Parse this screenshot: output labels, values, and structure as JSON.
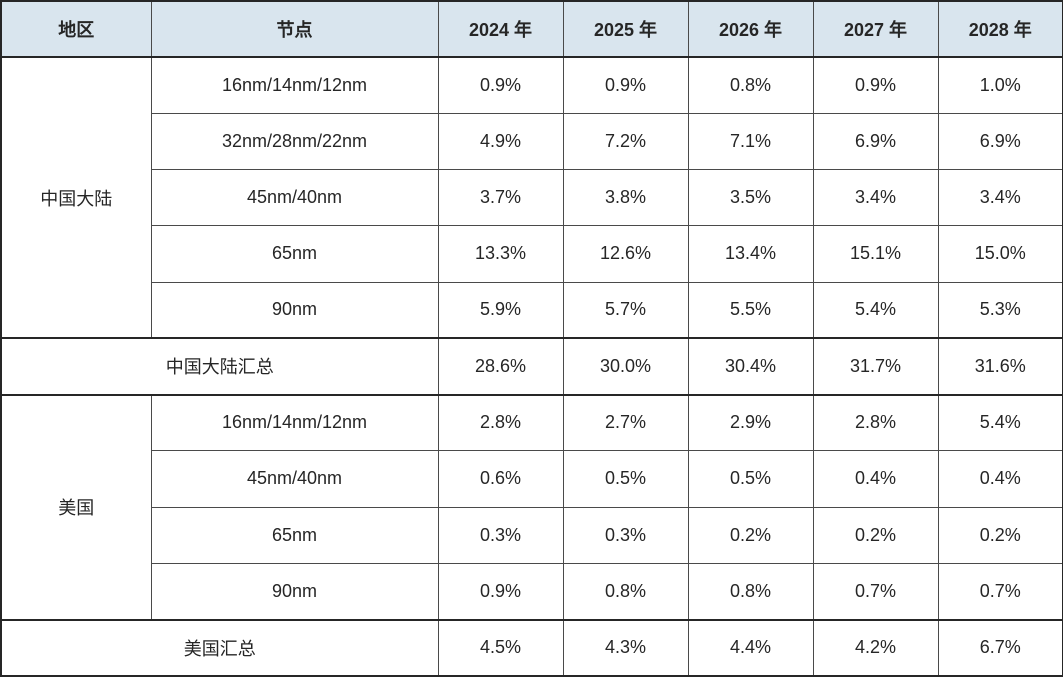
{
  "table": {
    "headers": {
      "region": "地区",
      "node": "节点",
      "years": [
        "2024 年",
        "2025 年",
        "2026 年",
        "2027 年",
        "2028 年"
      ]
    },
    "sections": [
      {
        "region": "中国大陆",
        "rows": [
          {
            "node": "16nm/14nm/12nm",
            "values": [
              "0.9%",
              "0.9%",
              "0.8%",
              "0.9%",
              "1.0%"
            ]
          },
          {
            "node": "32nm/28nm/22nm",
            "values": [
              "4.9%",
              "7.2%",
              "7.1%",
              "6.9%",
              "6.9%"
            ]
          },
          {
            "node": "45nm/40nm",
            "values": [
              "3.7%",
              "3.8%",
              "3.5%",
              "3.4%",
              "3.4%"
            ]
          },
          {
            "node": "65nm",
            "values": [
              "13.3%",
              "12.6%",
              "13.4%",
              "15.1%",
              "15.0%"
            ]
          },
          {
            "node": "90nm",
            "values": [
              "5.9%",
              "5.7%",
              "5.5%",
              "5.4%",
              "5.3%"
            ]
          }
        ],
        "summary": {
          "label": "中国大陆汇总",
          "values": [
            "28.6%",
            "30.0%",
            "30.4%",
            "31.7%",
            "31.6%"
          ]
        }
      },
      {
        "region": "美国",
        "rows": [
          {
            "node": "16nm/14nm/12nm",
            "values": [
              "2.8%",
              "2.7%",
              "2.9%",
              "2.8%",
              "5.4%"
            ]
          },
          {
            "node": "45nm/40nm",
            "values": [
              "0.6%",
              "0.5%",
              "0.5%",
              "0.4%",
              "0.4%"
            ]
          },
          {
            "node": "65nm",
            "values": [
              "0.3%",
              "0.3%",
              "0.2%",
              "0.2%",
              "0.2%"
            ]
          },
          {
            "node": "90nm",
            "values": [
              "0.9%",
              "0.8%",
              "0.8%",
              "0.7%",
              "0.7%"
            ]
          }
        ],
        "summary": {
          "label": "美国汇总",
          "values": [
            "4.5%",
            "4.3%",
            "4.4%",
            "4.2%",
            "6.7%"
          ]
        }
      }
    ],
    "colors": {
      "header_bg": "#d9e5ee",
      "border_dark": "#262626",
      "border_light": "#4a4a4a",
      "text": "#262626"
    }
  },
  "chart_data": {
    "type": "table",
    "title": "",
    "columns": [
      "地区",
      "节点",
      "2024 年",
      "2025 年",
      "2026 年",
      "2027 年",
      "2028 年"
    ],
    "rows": [
      [
        "中国大陆",
        "16nm/14nm/12nm",
        "0.9%",
        "0.9%",
        "0.8%",
        "0.9%",
        "1.0%"
      ],
      [
        "中国大陆",
        "32nm/28nm/22nm",
        "4.9%",
        "7.2%",
        "7.1%",
        "6.9%",
        "6.9%"
      ],
      [
        "中国大陆",
        "45nm/40nm",
        "3.7%",
        "3.8%",
        "3.5%",
        "3.4%",
        "3.4%"
      ],
      [
        "中国大陆",
        "65nm",
        "13.3%",
        "12.6%",
        "13.4%",
        "15.1%",
        "15.0%"
      ],
      [
        "中国大陆",
        "90nm",
        "5.9%",
        "5.7%",
        "5.5%",
        "5.4%",
        "5.3%"
      ],
      [
        "中国大陆汇总",
        "",
        "28.6%",
        "30.0%",
        "30.4%",
        "31.7%",
        "31.6%"
      ],
      [
        "美国",
        "16nm/14nm/12nm",
        "2.8%",
        "2.7%",
        "2.9%",
        "2.8%",
        "5.4%"
      ],
      [
        "美国",
        "45nm/40nm",
        "0.6%",
        "0.5%",
        "0.5%",
        "0.4%",
        "0.4%"
      ],
      [
        "美国",
        "65nm",
        "0.3%",
        "0.3%",
        "0.2%",
        "0.2%",
        "0.2%"
      ],
      [
        "美国",
        "90nm",
        "0.9%",
        "0.8%",
        "0.8%",
        "0.7%",
        "0.7%"
      ],
      [
        "美国汇总",
        "",
        "4.5%",
        "4.3%",
        "4.4%",
        "4.2%",
        "6.7%"
      ]
    ]
  }
}
